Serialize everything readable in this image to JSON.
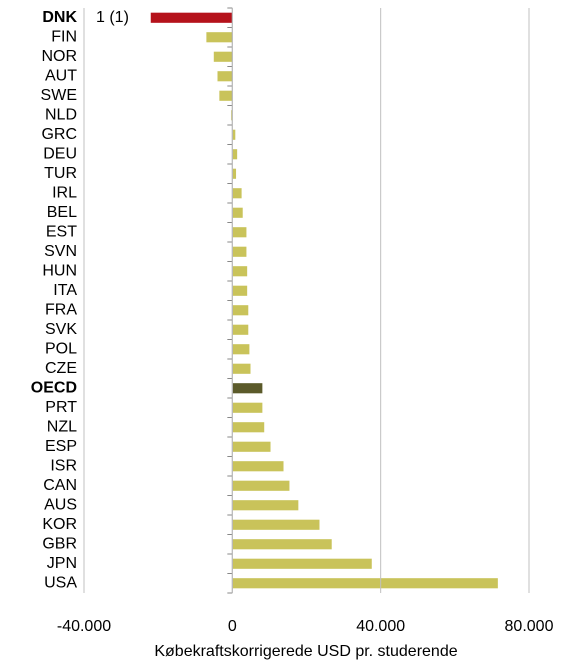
{
  "chart_data": {
    "type": "bar",
    "orientation": "horizontal",
    "categories": [
      "DNK",
      "FIN",
      "NOR",
      "AUT",
      "SWE",
      "NLD",
      "GRC",
      "DEU",
      "TUR",
      "IRL",
      "BEL",
      "EST",
      "SVN",
      "HUN",
      "ITA",
      "FRA",
      "SVK",
      "POL",
      "CZE",
      "OECD",
      "PRT",
      "NZL",
      "ESP",
      "ISR",
      "CAN",
      "AUS",
      "KOR",
      "GBR",
      "JPN",
      "USA"
    ],
    "values": [
      -22000,
      -7000,
      -5000,
      -4000,
      -3500,
      -300,
      800,
      1300,
      1000,
      2500,
      2800,
      3800,
      3800,
      4000,
      4000,
      4300,
      4300,
      4600,
      4900,
      8100,
      8100,
      8600,
      10300,
      13800,
      15400,
      17800,
      23500,
      26800,
      37600,
      71600
    ],
    "colors": [
      "#b5121b",
      "#c9c35a",
      "#c9c35a",
      "#c9c35a",
      "#c9c35a",
      "#c9c35a",
      "#c9c35a",
      "#c9c35a",
      "#c9c35a",
      "#c9c35a",
      "#c9c35a",
      "#c9c35a",
      "#c9c35a",
      "#c9c35a",
      "#c9c35a",
      "#c9c35a",
      "#c9c35a",
      "#c9c35a",
      "#c9c35a",
      "#5b5a2a",
      "#c9c35a",
      "#c9c35a",
      "#c9c35a",
      "#c9c35a",
      "#c9c35a",
      "#c9c35a",
      "#c9c35a",
      "#c9c35a",
      "#c9c35a",
      "#c9c35a"
    ],
    "bold_categories": [
      0,
      19
    ],
    "annotation": "1 (1)",
    "xlabel": "Købekraftskorrigerede USD pr. studerende",
    "xlim": [
      -40000,
      80000
    ],
    "xticks": [
      {
        "value": -40000,
        "label": "-40.000"
      },
      0,
      {
        "value": 40000,
        "label": "40.000"
      },
      {
        "value": 80000,
        "label": "80.000"
      }
    ],
    "grid": true
  }
}
